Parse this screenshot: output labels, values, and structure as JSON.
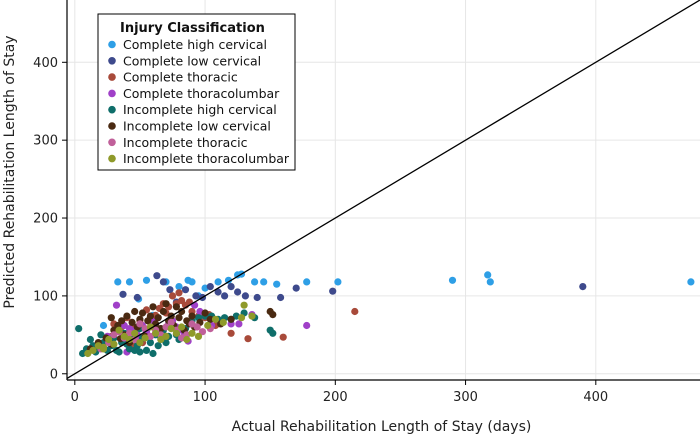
{
  "chart_data": {
    "type": "scatter",
    "xlabel": "Actual Rehabilitation Length of Stay (days)",
    "ylabel": "Predicted Rehabilitation Length of Stay",
    "xlim": [
      -6,
      480
    ],
    "ylim": [
      -8,
      480
    ],
    "xticks": [
      0,
      100,
      200,
      300,
      400
    ],
    "yticks": [
      0,
      100,
      200,
      300,
      400
    ],
    "grid": true,
    "reference_line": "y = x",
    "legend": {
      "title": "Injury Classification",
      "placement": "top-left"
    },
    "series": [
      {
        "name": "Complete high cervical",
        "color": "#2e9fe6",
        "points": [
          [
            33,
            118
          ],
          [
            42,
            118
          ],
          [
            49,
            96
          ],
          [
            55,
            120
          ],
          [
            62,
            62
          ],
          [
            70,
            118
          ],
          [
            80,
            112
          ],
          [
            87,
            120
          ],
          [
            90,
            118
          ],
          [
            95,
            100
          ],
          [
            100,
            110
          ],
          [
            110,
            118
          ],
          [
            118,
            120
          ],
          [
            125,
            127
          ],
          [
            128,
            128
          ],
          [
            138,
            118
          ],
          [
            145,
            118
          ],
          [
            155,
            115
          ],
          [
            178,
            118
          ],
          [
            202,
            118
          ],
          [
            290,
            120
          ],
          [
            317,
            127
          ],
          [
            319,
            118
          ],
          [
            473,
            118
          ],
          [
            22,
            62
          ],
          [
            63,
            72
          ],
          [
            60,
            75
          ]
        ]
      },
      {
        "name": "Complete low cervical",
        "color": "#3e4a8c",
        "points": [
          [
            37,
            102
          ],
          [
            48,
            98
          ],
          [
            63,
            126
          ],
          [
            68,
            118
          ],
          [
            73,
            108
          ],
          [
            85,
            108
          ],
          [
            93,
            100
          ],
          [
            98,
            98
          ],
          [
            104,
            112
          ],
          [
            110,
            105
          ],
          [
            115,
            100
          ],
          [
            120,
            112
          ],
          [
            125,
            105
          ],
          [
            131,
            100
          ],
          [
            140,
            98
          ],
          [
            158,
            98
          ],
          [
            170,
            110
          ],
          [
            198,
            106
          ],
          [
            390,
            112
          ],
          [
            60,
            70
          ],
          [
            78,
            92
          ]
        ]
      },
      {
        "name": "Complete thoracic",
        "color": "#a84a3a",
        "points": [
          [
            14,
            32
          ],
          [
            20,
            36
          ],
          [
            28,
            48
          ],
          [
            30,
            64
          ],
          [
            35,
            58
          ],
          [
            40,
            72
          ],
          [
            44,
            60
          ],
          [
            50,
            68
          ],
          [
            55,
            82
          ],
          [
            58,
            66
          ],
          [
            62,
            75
          ],
          [
            65,
            84
          ],
          [
            68,
            90
          ],
          [
            70,
            78
          ],
          [
            72,
            86
          ],
          [
            75,
            100
          ],
          [
            78,
            90
          ],
          [
            80,
            104
          ],
          [
            82,
            94
          ],
          [
            85,
            88
          ],
          [
            88,
            92
          ],
          [
            90,
            80
          ],
          [
            95,
            74
          ],
          [
            100,
            72
          ],
          [
            103,
            76
          ],
          [
            108,
            62
          ],
          [
            113,
            66
          ],
          [
            120,
            52
          ],
          [
            133,
            45
          ],
          [
            160,
            47
          ],
          [
            215,
            80
          ],
          [
            45,
            35
          ],
          [
            52,
            40
          ],
          [
            38,
            45
          ]
        ]
      },
      {
        "name": "Complete thoracolumbar",
        "color": "#a040c8",
        "points": [
          [
            25,
            48
          ],
          [
            32,
            88
          ],
          [
            38,
            62
          ],
          [
            42,
            58
          ],
          [
            45,
            55
          ],
          [
            48,
            50
          ],
          [
            52,
            62
          ],
          [
            55,
            54
          ],
          [
            58,
            70
          ],
          [
            60,
            66
          ],
          [
            62,
            52
          ],
          [
            66,
            58
          ],
          [
            70,
            48
          ],
          [
            72,
            64
          ],
          [
            75,
            68
          ],
          [
            78,
            60
          ],
          [
            80,
            56
          ],
          [
            84,
            50
          ],
          [
            87,
            42
          ],
          [
            92,
            88
          ],
          [
            96,
            80
          ],
          [
            100,
            74
          ],
          [
            105,
            62
          ],
          [
            112,
            66
          ],
          [
            120,
            64
          ],
          [
            126,
            64
          ],
          [
            136,
            76
          ],
          [
            178,
            62
          ],
          [
            40,
            28
          ],
          [
            50,
            45
          ]
        ]
      },
      {
        "name": "Incomplete high cervical",
        "color": "#0f6e6a",
        "points": [
          [
            3,
            58
          ],
          [
            6,
            26
          ],
          [
            9,
            32
          ],
          [
            11,
            30
          ],
          [
            12,
            44
          ],
          [
            14,
            36
          ],
          [
            16,
            28
          ],
          [
            18,
            34
          ],
          [
            20,
            50
          ],
          [
            22,
            40
          ],
          [
            25,
            30
          ],
          [
            28,
            36
          ],
          [
            30,
            46
          ],
          [
            32,
            30
          ],
          [
            34,
            28
          ],
          [
            36,
            40
          ],
          [
            38,
            52
          ],
          [
            40,
            38
          ],
          [
            42,
            32
          ],
          [
            44,
            44
          ],
          [
            46,
            30
          ],
          [
            48,
            36
          ],
          [
            50,
            58
          ],
          [
            52,
            46
          ],
          [
            55,
            30
          ],
          [
            58,
            40
          ],
          [
            60,
            26
          ],
          [
            62,
            50
          ],
          [
            64,
            36
          ],
          [
            66,
            46
          ],
          [
            68,
            56
          ],
          [
            70,
            40
          ],
          [
            72,
            48
          ],
          [
            75,
            62
          ],
          [
            78,
            50
          ],
          [
            80,
            44
          ],
          [
            85,
            58
          ],
          [
            90,
            68
          ],
          [
            95,
            72
          ],
          [
            100,
            74
          ],
          [
            105,
            74
          ],
          [
            110,
            70
          ],
          [
            115,
            72
          ],
          [
            120,
            70
          ],
          [
            124,
            74
          ],
          [
            130,
            78
          ],
          [
            138,
            72
          ],
          [
            150,
            56
          ],
          [
            152,
            52
          ],
          [
            50,
            28
          ]
        ]
      },
      {
        "name": "Incomplete low cervical",
        "color": "#4a2a12",
        "points": [
          [
            12,
            32
          ],
          [
            18,
            40
          ],
          [
            24,
            46
          ],
          [
            28,
            72
          ],
          [
            30,
            56
          ],
          [
            33,
            62
          ],
          [
            36,
            68
          ],
          [
            38,
            50
          ],
          [
            40,
            74
          ],
          [
            42,
            40
          ],
          [
            44,
            66
          ],
          [
            46,
            80
          ],
          [
            48,
            60
          ],
          [
            50,
            70
          ],
          [
            52,
            78
          ],
          [
            54,
            48
          ],
          [
            56,
            68
          ],
          [
            58,
            74
          ],
          [
            60,
            86
          ],
          [
            62,
            64
          ],
          [
            64,
            72
          ],
          [
            66,
            58
          ],
          [
            68,
            80
          ],
          [
            70,
            90
          ],
          [
            72,
            68
          ],
          [
            74,
            74
          ],
          [
            76,
            62
          ],
          [
            78,
            86
          ],
          [
            80,
            72
          ],
          [
            82,
            80
          ],
          [
            84,
            56
          ],
          [
            86,
            68
          ],
          [
            88,
            64
          ],
          [
            90,
            74
          ],
          [
            92,
            60
          ],
          [
            96,
            66
          ],
          [
            100,
            78
          ],
          [
            104,
            70
          ],
          [
            112,
            64
          ],
          [
            120,
            70
          ],
          [
            150,
            80
          ],
          [
            152,
            76
          ],
          [
            28,
            38
          ],
          [
            35,
            45
          ]
        ]
      },
      {
        "name": "Incomplete thoracic",
        "color": "#c0609a",
        "points": [
          [
            20,
            32
          ],
          [
            26,
            40
          ],
          [
            30,
            50
          ],
          [
            34,
            54
          ],
          [
            38,
            46
          ],
          [
            42,
            52
          ],
          [
            46,
            44
          ],
          [
            50,
            64
          ],
          [
            54,
            58
          ],
          [
            58,
            48
          ],
          [
            62,
            56
          ],
          [
            66,
            50
          ],
          [
            70,
            60
          ],
          [
            74,
            66
          ],
          [
            78,
            56
          ],
          [
            82,
            46
          ],
          [
            86,
            50
          ],
          [
            90,
            64
          ],
          [
            94,
            60
          ],
          [
            98,
            54
          ],
          [
            104,
            58
          ]
        ]
      },
      {
        "name": "Incomplete thoracolumbar",
        "color": "#8f9a2a",
        "points": [
          [
            10,
            26
          ],
          [
            14,
            30
          ],
          [
            18,
            36
          ],
          [
            22,
            34
          ],
          [
            26,
            44
          ],
          [
            30,
            38
          ],
          [
            34,
            56
          ],
          [
            38,
            48
          ],
          [
            42,
            44
          ],
          [
            46,
            52
          ],
          [
            50,
            40
          ],
          [
            54,
            46
          ],
          [
            58,
            60
          ],
          [
            62,
            52
          ],
          [
            66,
            44
          ],
          [
            70,
            48
          ],
          [
            74,
            58
          ],
          [
            78,
            52
          ],
          [
            82,
            60
          ],
          [
            86,
            44
          ],
          [
            90,
            52
          ],
          [
            95,
            48
          ],
          [
            102,
            62
          ],
          [
            108,
            70
          ],
          [
            114,
            66
          ],
          [
            128,
            72
          ],
          [
            130,
            88
          ],
          [
            136,
            74
          ],
          [
            22,
            32
          ]
        ]
      }
    ]
  }
}
